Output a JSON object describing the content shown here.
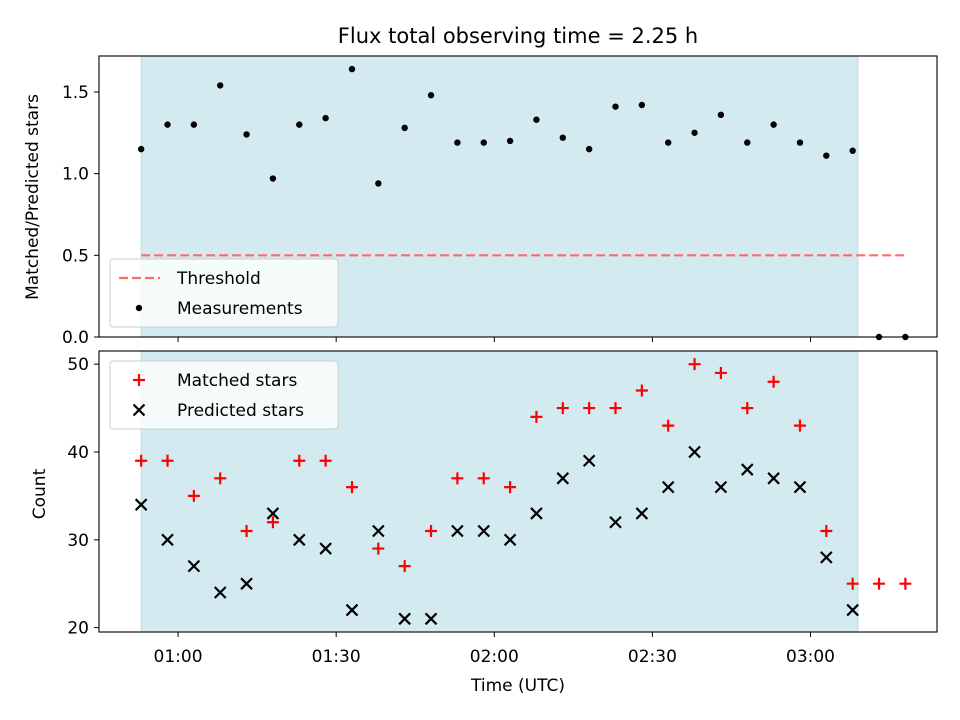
{
  "chart_data": {
    "title": "Flux total observing time = 2.25 h",
    "xlabel": "Time (UTC)",
    "x_ticks": [
      "01:00",
      "01:30",
      "02:00",
      "02:30",
      "03:00"
    ],
    "observing_window": {
      "start": "00:53",
      "end": "03:09",
      "color": "#d3eaf0"
    },
    "panels": [
      {
        "type": "scatter",
        "ylabel": "Matched/Predicted stars",
        "ylim": [
          0,
          1.72
        ],
        "y_ticks": [
          "0.0",
          "0.5",
          "1.0",
          "1.5"
        ],
        "legend_position": "lower-left",
        "series": [
          {
            "name": "Threshold",
            "kind": "line",
            "style": "dashed",
            "color": "#ff6b6b",
            "points": [
              [
                "00:53",
                0.5
              ],
              [
                "03:18",
                0.5
              ]
            ]
          },
          {
            "name": "Measurements",
            "kind": "dot",
            "color": "#000000",
            "points": [
              [
                "00:53",
                1.15
              ],
              [
                "00:58",
                1.3
              ],
              [
                "01:03",
                1.3
              ],
              [
                "01:08",
                1.54
              ],
              [
                "01:13",
                1.24
              ],
              [
                "01:18",
                0.97
              ],
              [
                "01:23",
                1.3
              ],
              [
                "01:28",
                1.34
              ],
              [
                "01:33",
                1.64
              ],
              [
                "01:38",
                0.94
              ],
              [
                "01:43",
                1.28
              ],
              [
                "01:48",
                1.48
              ],
              [
                "01:53",
                1.19
              ],
              [
                "01:58",
                1.19
              ],
              [
                "02:03",
                1.2
              ],
              [
                "02:08",
                1.33
              ],
              [
                "02:13",
                1.22
              ],
              [
                "02:18",
                1.15
              ],
              [
                "02:23",
                1.41
              ],
              [
                "02:28",
                1.42
              ],
              [
                "02:33",
                1.19
              ],
              [
                "02:38",
                1.25
              ],
              [
                "02:43",
                1.36
              ],
              [
                "02:48",
                1.19
              ],
              [
                "02:53",
                1.3
              ],
              [
                "02:58",
                1.19
              ],
              [
                "03:03",
                1.11
              ],
              [
                "03:08",
                1.14
              ],
              [
                "03:13",
                0.0
              ],
              [
                "03:18",
                0.0
              ]
            ]
          }
        ]
      },
      {
        "type": "scatter",
        "ylabel": "Count",
        "ylim": [
          19.5,
          51.5
        ],
        "y_ticks": [
          "20",
          "30",
          "40",
          "50"
        ],
        "legend_position": "upper-left",
        "series": [
          {
            "name": "Matched stars",
            "kind": "plus",
            "color": "#ff0000",
            "points": [
              [
                "00:53",
                39
              ],
              [
                "00:58",
                39
              ],
              [
                "01:03",
                35
              ],
              [
                "01:08",
                37
              ],
              [
                "01:13",
                31
              ],
              [
                "01:18",
                32
              ],
              [
                "01:23",
                39
              ],
              [
                "01:28",
                39
              ],
              [
                "01:33",
                36
              ],
              [
                "01:38",
                29
              ],
              [
                "01:43",
                27
              ],
              [
                "01:48",
                31
              ],
              [
                "01:53",
                37
              ],
              [
                "01:58",
                37
              ],
              [
                "02:03",
                36
              ],
              [
                "02:08",
                44
              ],
              [
                "02:13",
                45
              ],
              [
                "02:18",
                45
              ],
              [
                "02:23",
                45
              ],
              [
                "02:28",
                47
              ],
              [
                "02:33",
                43
              ],
              [
                "02:38",
                50
              ],
              [
                "02:43",
                49
              ],
              [
                "02:48",
                45
              ],
              [
                "02:53",
                48
              ],
              [
                "02:58",
                43
              ],
              [
                "03:03",
                31
              ],
              [
                "03:08",
                25
              ],
              [
                "03:13",
                25
              ],
              [
                "03:18",
                25
              ]
            ]
          },
          {
            "name": "Predicted stars",
            "kind": "x",
            "color": "#000000",
            "points": [
              [
                "00:53",
                34
              ],
              [
                "00:58",
                30
              ],
              [
                "01:03",
                27
              ],
              [
                "01:08",
                24
              ],
              [
                "01:13",
                25
              ],
              [
                "01:18",
                33
              ],
              [
                "01:23",
                30
              ],
              [
                "01:28",
                29
              ],
              [
                "01:33",
                22
              ],
              [
                "01:38",
                31
              ],
              [
                "01:43",
                21
              ],
              [
                "01:48",
                21
              ],
              [
                "01:53",
                31
              ],
              [
                "01:58",
                31
              ],
              [
                "02:03",
                30
              ],
              [
                "02:08",
                33
              ],
              [
                "02:13",
                37
              ],
              [
                "02:18",
                39
              ],
              [
                "02:23",
                32
              ],
              [
                "02:28",
                33
              ],
              [
                "02:33",
                36
              ],
              [
                "02:38",
                40
              ],
              [
                "02:43",
                36
              ],
              [
                "02:48",
                38
              ],
              [
                "02:53",
                37
              ],
              [
                "02:58",
                36
              ],
              [
                "03:03",
                28
              ],
              [
                "03:08",
                22
              ]
            ]
          }
        ]
      }
    ]
  }
}
